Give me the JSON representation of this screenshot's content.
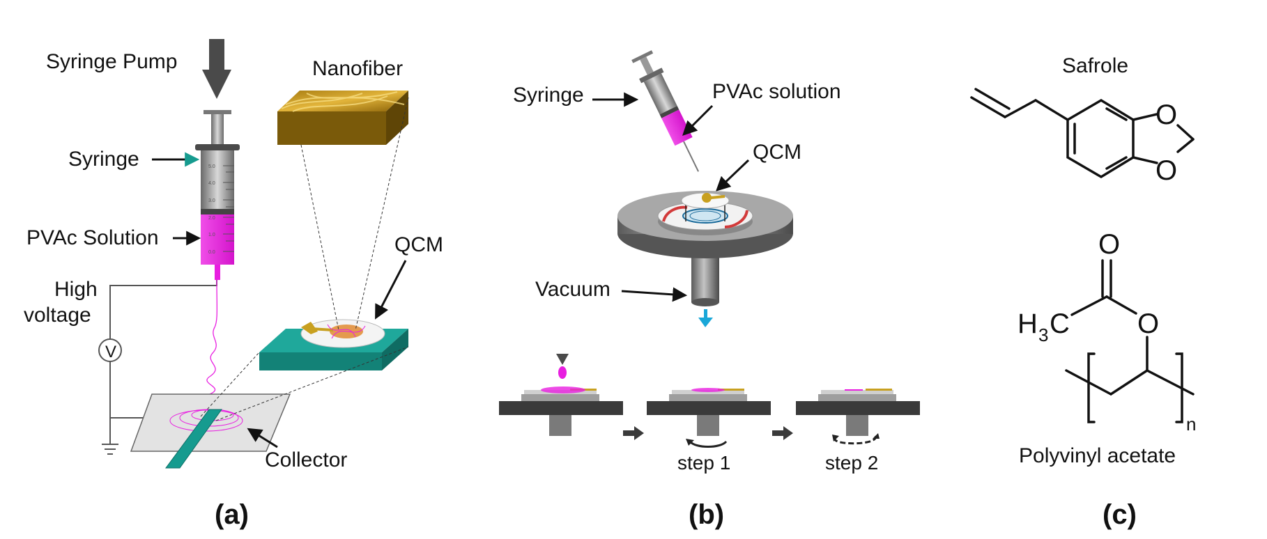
{
  "panel_a": {
    "label": "(a)",
    "syringe_pump": "Syringe Pump",
    "nanofiber": "Nanofiber",
    "syringe": "Syringe",
    "pvac_solution": "PVAc Solution",
    "high_voltage_1": "High",
    "high_voltage_2": "voltage",
    "voltmeter": "V",
    "qcm": "QCM",
    "collector": "Collector",
    "syringe_ticks": [
      "5.0",
      "4.0",
      "3.0",
      "2.0",
      "1.0",
      "0.0"
    ]
  },
  "panel_b": {
    "label": "(b)",
    "syringe": "Syringe",
    "pvac_solution": "PVAc solution",
    "qcm": "QCM",
    "vacuum": "Vacuum",
    "step1": "step 1",
    "step2": "step 2"
  },
  "panel_c": {
    "label": "(c)",
    "safrole": "Safrole",
    "o_top": "O",
    "o_bottom": "O",
    "carbonyl_o": "O",
    "ester_o": "O",
    "methyl_h": "H",
    "methyl_sub": "3",
    "methyl_c": "C",
    "repeat_n": "n",
    "polymer_name": "Polyvinyl acetate"
  },
  "colors": {
    "magenta": "#e81ee0",
    "teal": "#169b8f",
    "arrow_blue": "#1aa7d8",
    "gold": "#c8a020",
    "dark": "#3a3a3a"
  }
}
